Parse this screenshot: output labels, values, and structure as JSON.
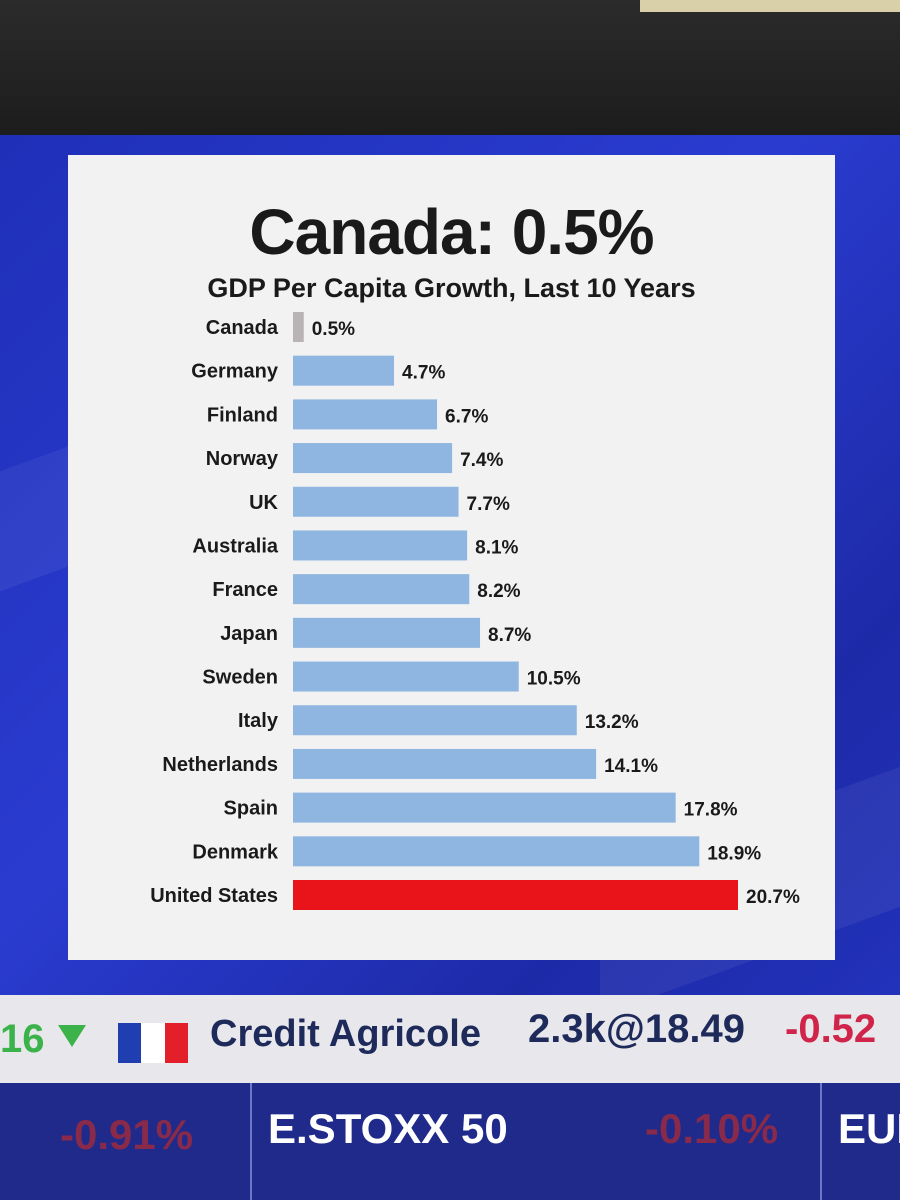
{
  "chart_data": {
    "type": "bar",
    "orientation": "horizontal",
    "title": "Canada: 0.5%",
    "subtitle": "GDP Per Capita Growth, Last 10 Years",
    "categories": [
      "Canada",
      "Germany",
      "Finland",
      "Norway",
      "UK",
      "Australia",
      "France",
      "Japan",
      "Sweden",
      "Italy",
      "Netherlands",
      "Spain",
      "Denmark",
      "United States"
    ],
    "values": [
      0.5,
      4.7,
      6.7,
      7.4,
      7.7,
      8.1,
      8.2,
      8.7,
      10.5,
      13.2,
      14.1,
      17.8,
      18.9,
      20.7
    ],
    "value_labels": [
      "0.5%",
      "4.7%",
      "6.7%",
      "7.4%",
      "7.7%",
      "8.1%",
      "8.2%",
      "8.7%",
      "10.5%",
      "13.2%",
      "14.1%",
      "17.8%",
      "18.9%",
      "20.7%"
    ],
    "colors": {
      "default": "#8fb6e0",
      "canada": "#b9b3b6",
      "highlight": "#e8141a"
    },
    "grid": false,
    "legend": "none"
  },
  "ticker": {
    "number": "16",
    "company": "Credit Agricole",
    "quantity": "2.3k@18.49",
    "change": "-0.52",
    "flag_colors": [
      "#1f3fb0",
      "#ffffff",
      "#e3202a"
    ]
  },
  "bottom_bar": {
    "left_change": "-0.91%",
    "index": "E.STOXX 50",
    "index_change": "-0.10%",
    "right_label": "EUR"
  }
}
